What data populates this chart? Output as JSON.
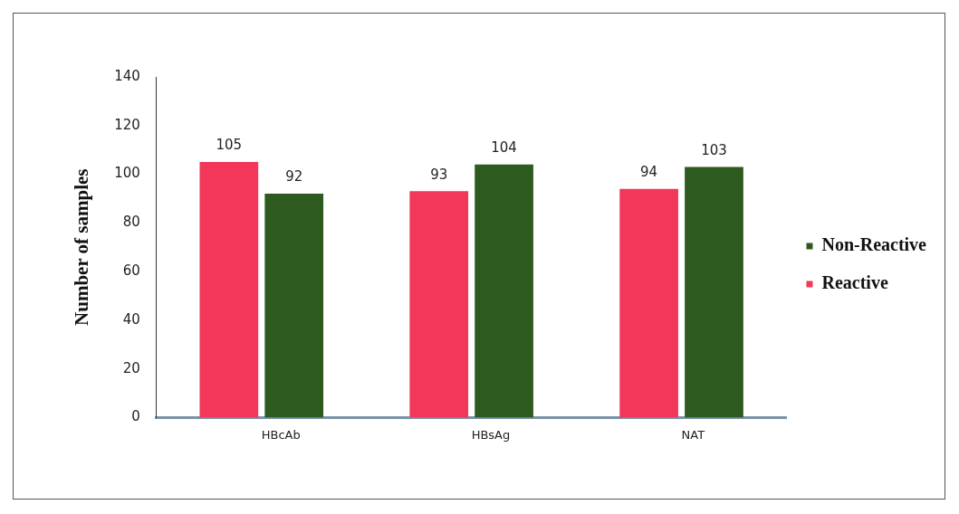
{
  "chart_data": {
    "type": "bar",
    "ylabel": "Number of samples",
    "categories": [
      "HBcAb",
      "HBsAg",
      "NAT"
    ],
    "series": [
      {
        "name": "Reactive",
        "color": "#f2375a",
        "values": [
          105,
          93,
          94
        ]
      },
      {
        "name": "Non-Reactive",
        "color": "#2d5a1e",
        "values": [
          92,
          104,
          103
        ]
      }
    ],
    "ylim": [
      0,
      140
    ],
    "yticks": [
      0,
      20,
      40,
      60,
      80,
      100,
      120,
      140
    ],
    "grid": false,
    "legend": "right",
    "data_labels": true
  }
}
